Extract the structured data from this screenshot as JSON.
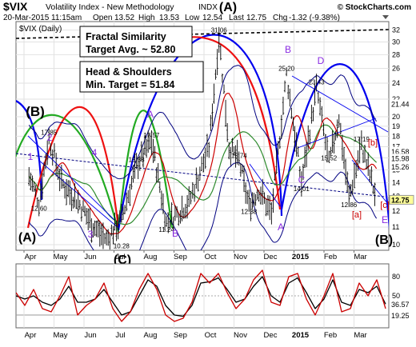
{
  "header": {
    "symbol": "$VIX",
    "name": "Volatility Index - New Methodology",
    "exchange": "INDX",
    "copyright": "© StockCharts.com",
    "datetime": "20-Mar-2015 11:15am",
    "open_label": "Open",
    "open": "13.52",
    "high_label": "High",
    "high": "13.53",
    "low_label": "Low",
    "low": "12.54",
    "last_label": "Last",
    "last": "12.75",
    "chg_label": "Chg",
    "chg": "-1.32 (-9.38%)",
    "legend": "$VIX (Daily)"
  },
  "colors": {
    "price_bars": "#000000",
    "ma_red": "#cc0000",
    "ma_green": "#2e8b2e",
    "band": "#000080",
    "cycle_blue": "#0000ee",
    "cycle_red": "#ee1111",
    "cycle_green": "#22aa22",
    "wave_purple": "#8a2be2",
    "wave_red": "#cc0000",
    "last_label_bg": "#ffff99",
    "osc_fast": "#cc0000",
    "osc_slow": "#000000"
  },
  "annotations": {
    "box1_line1": "Fractal Similarity",
    "box1_line2": "Target Avg. ~ 52.80",
    "box2_line1": "Head & Shoulders",
    "box2_line2": "Min. Target = 51.84"
  },
  "chart_data": [
    {
      "type": "line",
      "subtype": "ohlc-bars",
      "title": "$VIX (Daily)",
      "yscale": "log",
      "ylim": [
        9.7,
        33.5
      ],
      "y_ticks": [
        10,
        11,
        12,
        13,
        14,
        15,
        16,
        17,
        18,
        19,
        20,
        22,
        24,
        26,
        28,
        30,
        32
      ],
      "x_tick_labels": [
        "Apr",
        "May",
        "Jun",
        "Jul",
        "Aug",
        "Sep",
        "Oct",
        "Nov",
        "Dec",
        "2015",
        "Feb",
        "Mar"
      ],
      "price_path": [
        [
          "Apr",
          14.5
        ],
        [
          "Apr",
          12.6
        ],
        [
          "Apr",
          17.85
        ],
        [
          "May",
          14.0
        ],
        [
          "May",
          12.8
        ],
        [
          "Jun",
          11.2
        ],
        [
          "Jun",
          10.28
        ],
        [
          "Jul",
          11.5
        ],
        [
          "Jul",
          15.38
        ],
        [
          "Aug",
          17.57
        ],
        [
          "Aug",
          11.24
        ],
        [
          "Sep",
          12.6
        ],
        [
          "Oct",
          17.0
        ],
        [
          "Oct",
          31.06
        ],
        [
          "Oct",
          17.0
        ],
        [
          "Nov",
          15.74
        ],
        [
          "Nov",
          12.38
        ],
        [
          "Nov",
          13.5
        ],
        [
          "Dec",
          11.8
        ],
        [
          "Dec",
          25.2
        ],
        [
          "2015",
          14.01
        ],
        [
          "2015",
          23.43
        ],
        [
          "Feb",
          15.52
        ],
        [
          "Feb",
          20.0
        ],
        [
          "Feb",
          12.86
        ],
        [
          "Mar",
          17.19
        ],
        [
          "Mar",
          12.75
        ]
      ],
      "price_labels": [
        {
          "text": "12.60",
          "x": "Apr",
          "value": 12.6
        },
        {
          "text": "17.85",
          "x": "Apr",
          "value": 17.85
        },
        {
          "text": "10.28",
          "x": "Jul",
          "value": 10.28
        },
        {
          "text": "15.38",
          "x": "Jul",
          "value": 15.38
        },
        {
          "text": "17.57",
          "x": "Aug",
          "value": 17.57
        },
        {
          "text": "11.24",
          "x": "Aug",
          "value": 11.24
        },
        {
          "text": "31.06",
          "x": "Oct",
          "value": 31.06
        },
        {
          "text": "15.74",
          "x": "Nov",
          "value": 15.74
        },
        {
          "text": "12.38",
          "x": "Nov",
          "value": 12.38
        },
        {
          "text": "25.20",
          "x": "Dec",
          "value": 25.2
        },
        {
          "text": "23.43",
          "x": "2015",
          "value": 23.43
        },
        {
          "text": "14.01",
          "x": "2015",
          "value": 14.01
        },
        {
          "text": "15.52",
          "x": "Feb",
          "value": 15.52
        },
        {
          "text": "12.86",
          "x": "Feb",
          "value": 12.86
        },
        {
          "text": "17.19",
          "x": "Mar",
          "value": 17.19
        }
      ],
      "right_axis_labels": [
        "21.44",
        "16.58",
        "15.98",
        "15.26",
        "12.75"
      ],
      "wave_labels": [
        {
          "text": "(A)",
          "color": "black"
        },
        {
          "text": "(B)",
          "color": "black"
        },
        {
          "text": "(A)",
          "color": "black"
        },
        {
          "text": "(C)",
          "color": "black"
        },
        {
          "text": "(B)",
          "color": "black"
        },
        {
          "text": "1",
          "color": "purple"
        },
        {
          "text": "2",
          "color": "purple"
        },
        {
          "text": "3",
          "color": "purple"
        },
        {
          "text": "4",
          "color": "purple"
        },
        {
          "text": "5",
          "color": "purple"
        },
        {
          "text": "A",
          "color": "purple"
        },
        {
          "text": "B",
          "color": "purple"
        },
        {
          "text": "A",
          "color": "purple"
        },
        {
          "text": "B",
          "color": "purple"
        },
        {
          "text": "C",
          "color": "purple"
        },
        {
          "text": "D",
          "color": "purple"
        },
        {
          "text": "E",
          "color": "purple"
        },
        {
          "text": "[a]",
          "color": "red"
        },
        {
          "text": "[b]",
          "color": "red"
        },
        {
          "text": "[c]",
          "color": "red"
        }
      ]
    },
    {
      "type": "line",
      "subtype": "oscillator",
      "ylim": [
        0,
        100
      ],
      "y_ticks": [
        20,
        50,
        80
      ],
      "right_axis_labels": [
        "36.57",
        "19.25"
      ],
      "x_tick_labels": [
        "Apr",
        "May",
        "Jun",
        "Jul",
        "Aug",
        "Sep",
        "Oct",
        "Nov",
        "Dec",
        "2015",
        "Feb",
        "Mar"
      ],
      "fast_line_values": [
        55,
        35,
        60,
        30,
        25,
        50,
        80,
        20,
        35,
        45,
        70,
        30,
        10,
        25,
        60,
        85,
        60,
        20,
        10,
        15,
        40,
        85,
        70,
        85,
        55,
        30,
        45,
        75,
        90,
        40,
        35,
        80,
        85,
        45,
        20,
        50,
        85,
        25,
        30,
        70,
        50,
        75,
        30
      ],
      "slow_line_values": [
        50,
        45,
        50,
        40,
        35,
        45,
        65,
        40,
        40,
        45,
        60,
        40,
        20,
        25,
        50,
        75,
        65,
        35,
        20,
        18,
        35,
        70,
        72,
        78,
        60,
        40,
        45,
        65,
        80,
        50,
        40,
        70,
        78,
        55,
        30,
        45,
        75,
        40,
        35,
        60,
        55,
        65,
        37
      ]
    }
  ]
}
